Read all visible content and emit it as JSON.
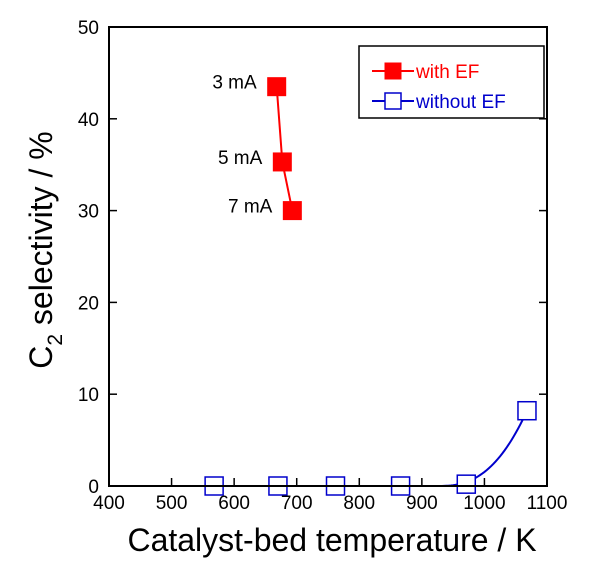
{
  "chart_data": {
    "type": "scatter",
    "title": "",
    "xlabel": "Catalyst-bed temperature / K",
    "ylabel_main": "C",
    "ylabel_sub": "2",
    "ylabel_rest": " selectivity / %",
    "xlim": [
      400,
      1100
    ],
    "ylim": [
      0,
      50
    ],
    "xticks": [
      400,
      500,
      600,
      700,
      800,
      900,
      1000,
      1100
    ],
    "yticks": [
      0,
      10,
      20,
      30,
      40,
      50
    ],
    "grid": false,
    "legend_position": "top-right",
    "series": [
      {
        "name": "with EF",
        "color": "#ff0000",
        "marker": "filled-square",
        "x": [
          668,
          677,
          693
        ],
        "y": [
          43.5,
          35.3,
          30.0
        ],
        "point_labels": [
          "3 mA",
          "5 mA",
          "7 mA"
        ]
      },
      {
        "name": "without EF",
        "color": "#0000cc",
        "marker": "open-square",
        "x": [
          568,
          670,
          762,
          866,
          971,
          1068
        ],
        "y": [
          0,
          0,
          0,
          0,
          0.2,
          8.2
        ]
      }
    ]
  }
}
